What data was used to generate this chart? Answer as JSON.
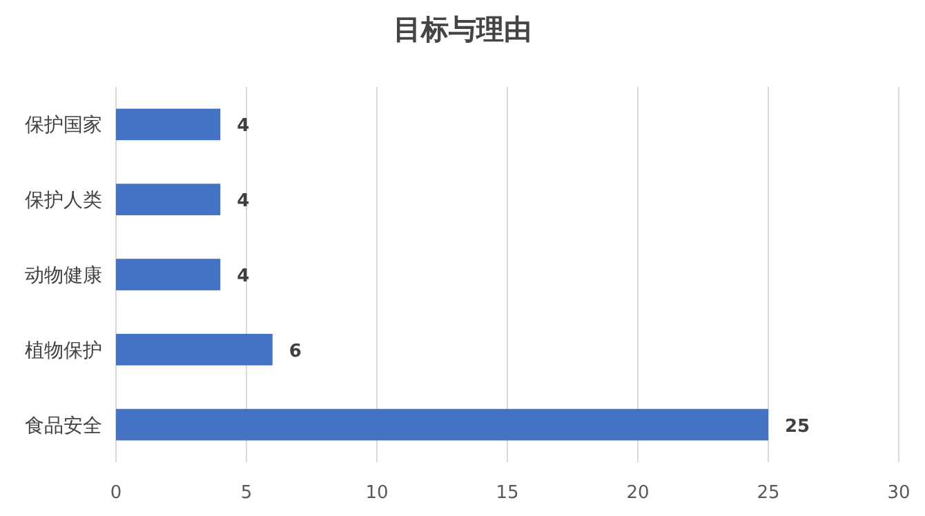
{
  "chart_data": {
    "type": "bar",
    "orientation": "horizontal",
    "title": "目标与理由",
    "categories": [
      "保护国家",
      "保护人类",
      "动物健康",
      "植物保护",
      "食品安全"
    ],
    "values": [
      4,
      4,
      4,
      6,
      25
    ],
    "color": "#4472c4",
    "xlim": [
      0,
      30
    ],
    "xticks": [
      0,
      5,
      10,
      15,
      20,
      25,
      30
    ],
    "grid": "x",
    "data_labels": true
  }
}
